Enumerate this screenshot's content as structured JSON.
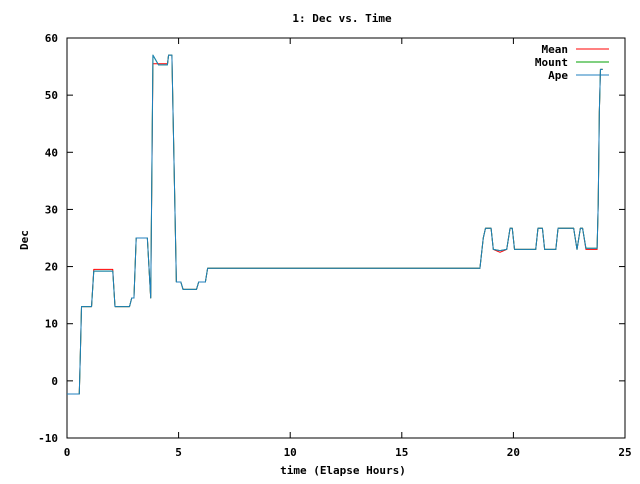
{
  "chart_data": {
    "type": "line",
    "title": "1: Dec vs. Time",
    "xlabel": "time (Elapse Hours)",
    "ylabel": "Dec",
    "xlim": [
      0,
      25
    ],
    "ylim": [
      -10,
      60
    ],
    "xticks": [
      0,
      5,
      10,
      15,
      20,
      25
    ],
    "yticks": [
      -10,
      0,
      10,
      20,
      30,
      40,
      50,
      60
    ],
    "grid": false,
    "legend_position": "top-right",
    "series": [
      {
        "name": "Mean",
        "color": "#ff0000",
        "points": [
          [
            0,
            -2.3
          ],
          [
            0.55,
            -2.3
          ],
          [
            0.6,
            5
          ],
          [
            0.65,
            13
          ],
          [
            1.1,
            13
          ],
          [
            1.2,
            19.5
          ],
          [
            2.05,
            19.5
          ],
          [
            2.15,
            13
          ],
          [
            2.8,
            13
          ],
          [
            2.9,
            14.5
          ],
          [
            3.0,
            14.5
          ],
          [
            3.1,
            25
          ],
          [
            3.6,
            25
          ],
          [
            3.75,
            14.5
          ],
          [
            3.85,
            55.5
          ],
          [
            4.1,
            55.5
          ],
          [
            4.25,
            55.5
          ],
          [
            4.5,
            55.5
          ],
          [
            4.55,
            57
          ],
          [
            4.7,
            57
          ],
          [
            4.9,
            17.3
          ],
          [
            5.1,
            17.3
          ],
          [
            5.2,
            16
          ],
          [
            5.8,
            16
          ],
          [
            5.9,
            17.3
          ],
          [
            6.2,
            17.3
          ],
          [
            6.3,
            19.7
          ],
          [
            18.5,
            19.7
          ],
          [
            18.65,
            25
          ],
          [
            18.75,
            26.7
          ],
          [
            19.0,
            26.7
          ],
          [
            19.1,
            23
          ],
          [
            19.4,
            22.5
          ],
          [
            19.7,
            23
          ],
          [
            19.85,
            26.7
          ],
          [
            19.95,
            26.7
          ],
          [
            20.05,
            23
          ],
          [
            21.0,
            23
          ],
          [
            21.1,
            26.7
          ],
          [
            21.3,
            26.7
          ],
          [
            21.4,
            23
          ],
          [
            21.9,
            23
          ],
          [
            22.0,
            26.7
          ],
          [
            22.7,
            26.7
          ],
          [
            22.85,
            23
          ],
          [
            23.0,
            26.7
          ],
          [
            23.1,
            26.7
          ],
          [
            23.25,
            23
          ],
          [
            23.75,
            23
          ],
          [
            23.8,
            31
          ],
          [
            23.85,
            47
          ],
          [
            23.9,
            54.5
          ],
          [
            24.0,
            54.5
          ]
        ]
      },
      {
        "name": "Mount",
        "color": "#00a000",
        "points": [
          [
            0,
            -2.3
          ],
          [
            0.55,
            -2.3
          ],
          [
            0.6,
            5
          ],
          [
            0.65,
            13
          ],
          [
            1.1,
            13
          ],
          [
            1.2,
            19.2
          ],
          [
            2.05,
            19.2
          ],
          [
            2.15,
            13
          ],
          [
            2.8,
            13
          ],
          [
            2.9,
            14.5
          ],
          [
            3.0,
            14.5
          ],
          [
            3.1,
            25
          ],
          [
            3.6,
            25
          ],
          [
            3.75,
            14.5
          ],
          [
            3.85,
            57
          ],
          [
            4.1,
            55.3
          ],
          [
            4.5,
            55.3
          ],
          [
            4.55,
            57
          ],
          [
            4.7,
            57
          ],
          [
            4.9,
            17.3
          ],
          [
            5.1,
            17.3
          ],
          [
            5.2,
            16
          ],
          [
            5.8,
            16
          ],
          [
            5.9,
            17.3
          ],
          [
            6.2,
            17.3
          ],
          [
            6.3,
            19.7
          ],
          [
            18.5,
            19.7
          ],
          [
            18.65,
            25
          ],
          [
            18.75,
            26.7
          ],
          [
            19.0,
            26.7
          ],
          [
            19.1,
            23
          ],
          [
            19.4,
            22.8
          ],
          [
            19.7,
            23
          ],
          [
            19.85,
            26.7
          ],
          [
            19.95,
            26.7
          ],
          [
            20.05,
            23
          ],
          [
            21.0,
            23
          ],
          [
            21.1,
            26.7
          ],
          [
            21.3,
            26.7
          ],
          [
            21.4,
            23
          ],
          [
            21.9,
            23
          ],
          [
            22.0,
            26.7
          ],
          [
            22.7,
            26.7
          ],
          [
            22.85,
            23
          ],
          [
            23.0,
            26.7
          ],
          [
            23.1,
            26.7
          ],
          [
            23.25,
            23.2
          ],
          [
            23.75,
            23.2
          ],
          [
            23.8,
            31
          ],
          [
            23.85,
            47
          ],
          [
            23.9,
            54.5
          ],
          [
            24.0,
            54.5
          ]
        ]
      },
      {
        "name": "Ape",
        "color": "#1f7fbf",
        "points": [
          [
            0,
            -2.3
          ],
          [
            0.55,
            -2.3
          ],
          [
            0.6,
            5
          ],
          [
            0.65,
            13
          ],
          [
            1.1,
            13
          ],
          [
            1.2,
            19.2
          ],
          [
            2.05,
            19.2
          ],
          [
            2.15,
            13
          ],
          [
            2.8,
            13
          ],
          [
            2.9,
            14.5
          ],
          [
            3.0,
            14.5
          ],
          [
            3.1,
            25
          ],
          [
            3.6,
            25
          ],
          [
            3.75,
            14.5
          ],
          [
            3.85,
            57
          ],
          [
            4.1,
            55.3
          ],
          [
            4.5,
            55.3
          ],
          [
            4.55,
            57
          ],
          [
            4.7,
            57
          ],
          [
            4.9,
            17.3
          ],
          [
            5.1,
            17.3
          ],
          [
            5.2,
            16
          ],
          [
            5.8,
            16
          ],
          [
            5.9,
            17.3
          ],
          [
            6.2,
            17.3
          ],
          [
            6.3,
            19.7
          ],
          [
            18.5,
            19.7
          ],
          [
            18.65,
            25
          ],
          [
            18.75,
            26.7
          ],
          [
            19.0,
            26.7
          ],
          [
            19.1,
            23
          ],
          [
            19.4,
            22.8
          ],
          [
            19.7,
            23
          ],
          [
            19.85,
            26.7
          ],
          [
            19.95,
            26.7
          ],
          [
            20.05,
            23
          ],
          [
            21.0,
            23
          ],
          [
            21.1,
            26.7
          ],
          [
            21.3,
            26.7
          ],
          [
            21.4,
            23
          ],
          [
            21.9,
            23
          ],
          [
            22.0,
            26.7
          ],
          [
            22.7,
            26.7
          ],
          [
            22.85,
            23
          ],
          [
            23.0,
            26.7
          ],
          [
            23.1,
            26.7
          ],
          [
            23.25,
            23.2
          ],
          [
            23.75,
            23.2
          ],
          [
            23.8,
            31
          ],
          [
            23.85,
            47
          ],
          [
            23.9,
            54.5
          ],
          [
            24.0,
            54.5
          ]
        ]
      }
    ]
  }
}
